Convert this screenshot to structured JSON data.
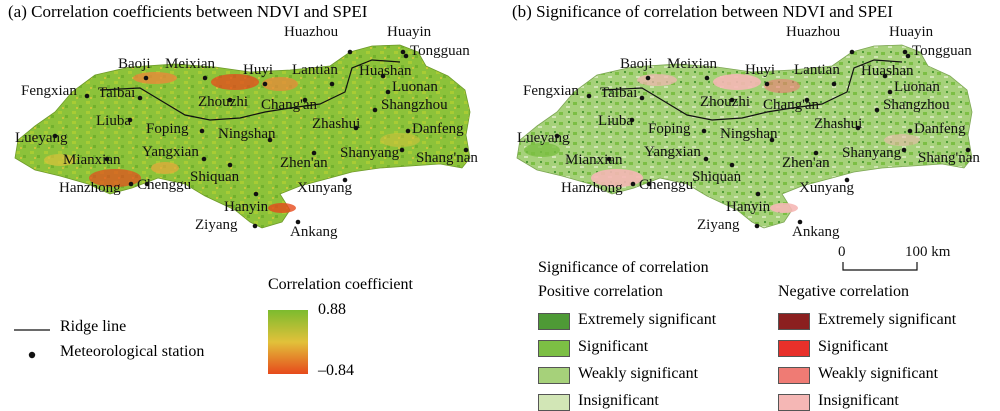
{
  "panel_a": {
    "title": "(a) Correlation coefficients between NDVI and SPEI",
    "stations": [
      "Baoji",
      "Meixian",
      "Huazhou",
      "Huayin",
      "Tongguan",
      "Huyi",
      "Lantian",
      "Huashan",
      "Luonan",
      "Fengxian",
      "Taibai",
      "Zhouzhi",
      "Chang'an",
      "Shangzhou",
      "Liuba",
      "Foping",
      "Ningshan",
      "Zhashui",
      "Danfeng",
      "Lueyang",
      "Mianxian",
      "Yangxian",
      "Zhen'an",
      "Shanyang",
      "Shang'nan",
      "Hanzhong",
      "Chenggu",
      "Shiquan",
      "Xunyang",
      "Hanyin",
      "Ziyang",
      "Ankang"
    ],
    "legend": {
      "ridge_label": "Ridge line",
      "station_label": "Meteorological station",
      "colorbar_title": "Correlation coefficient",
      "colorbar_max": "0.88",
      "colorbar_min": "–0.84",
      "colors": {
        "high": "#7cbb2e",
        "mid": "#e2c13a",
        "low": "#e64a1c"
      }
    }
  },
  "panel_b": {
    "title": "(b) Significance of correlation between NDVI and SPEI",
    "scale_zero": "0",
    "scale_max": "100 km",
    "legend_title": "Significance of correlation",
    "positive_header": "Positive correlation",
    "negative_header": "Negative correlation",
    "positive": [
      {
        "label": "Extremely significant",
        "color": "#4e9a36"
      },
      {
        "label": "Significant",
        "color": "#7cbf44"
      },
      {
        "label": "Weakly significant",
        "color": "#a6d17a"
      },
      {
        "label": "Insignificant",
        "color": "#d2e6b6"
      }
    ],
    "negative": [
      {
        "label": "Extremely significant",
        "color": "#8b1f1f"
      },
      {
        "label": "Significant",
        "color": "#e8302a"
      },
      {
        "label": "Weakly significant",
        "color": "#ef7b74"
      },
      {
        "label": "Insignificant",
        "color": "#f5b7b5"
      }
    ]
  }
}
